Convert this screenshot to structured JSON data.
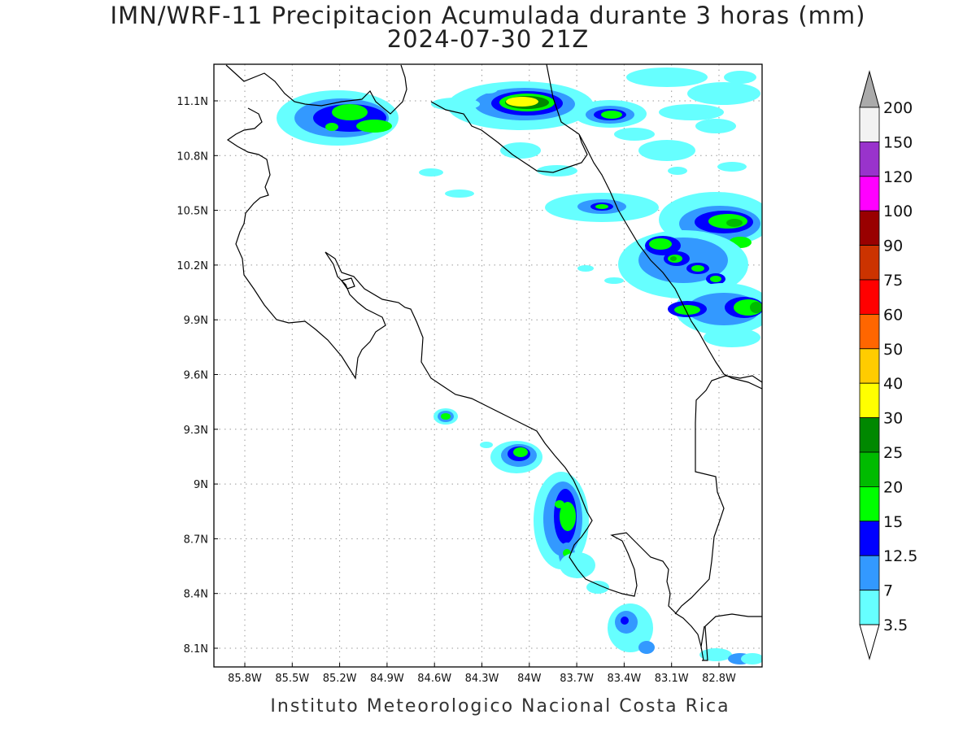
{
  "title_line1": "IMN/WRF-11 Precipitacion Acumulada durante 3 horas (mm)",
  "title_line2": "2024-07-30 21Z",
  "credit": "Instituto Meteorologico Nacional Costa Rica",
  "axes": {
    "lat_ticks": [
      "11.1N",
      "10.8N",
      "10.5N",
      "10.2N",
      "9.9N",
      "9.6N",
      "9.3N",
      "9N",
      "8.7N",
      "8.4N",
      "8.1N"
    ],
    "lon_ticks": [
      "85.8W",
      "85.5W",
      "85.2W",
      "84.9W",
      "84.6W",
      "84.3W",
      "84W",
      "83.7W",
      "83.4W",
      "83.1W",
      "82.8W"
    ],
    "grid": "dotted"
  },
  "colorbar": {
    "labels": [
      "200",
      "150",
      "120",
      "100",
      "90",
      "75",
      "60",
      "50",
      "40",
      "30",
      "25",
      "20",
      "15",
      "12.5",
      "7",
      "3.5"
    ],
    "colors": [
      "#f2f2f2",
      "#9933cc",
      "#ff00ff",
      "#990000",
      "#cc3300",
      "#ff0000",
      "#ff6600",
      "#ffcc00",
      "#ffff00",
      "#008800",
      "#00bb00",
      "#00ff00",
      "#0000ff",
      "#3399ff",
      "#66ffff"
    ],
    "over_color": "#aaaaaa",
    "under_color": "#ffffff"
  }
}
